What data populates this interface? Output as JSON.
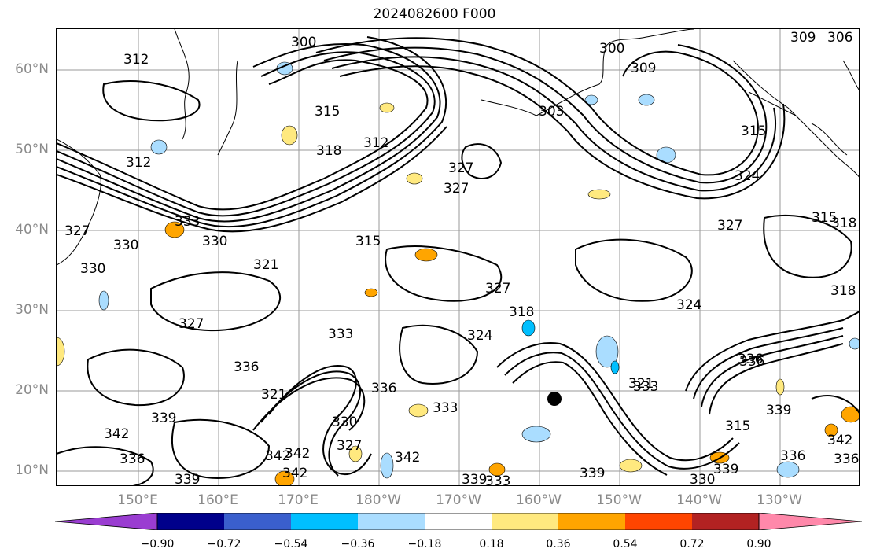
{
  "title": "2024082600 F000",
  "latitude_labels": [
    "60°N",
    "50°N",
    "40°N",
    "30°N",
    "20°N",
    "10°N"
  ],
  "longitude_labels": [
    "150°E",
    "160°E",
    "170°E",
    "180°W",
    "170°W",
    "160°W",
    "150°W",
    "140°W",
    "130°W"
  ],
  "contour_labels": [
    "300",
    "309",
    "306",
    "300",
    "312",
    "315",
    "309",
    "303",
    "318",
    "312",
    "315",
    "312",
    "327",
    "327",
    "324",
    "327",
    "315",
    "318",
    "315",
    "333",
    "330",
    "330",
    "327",
    "321",
    "330",
    "333",
    "318",
    "327",
    "324",
    "336",
    "336",
    "327",
    "321",
    "342",
    "336",
    "339",
    "324",
    "321",
    "333",
    "330",
    "342",
    "333",
    "327",
    "339",
    "342",
    "336",
    "342",
    "342",
    "339",
    "336",
    "339",
    "336",
    "339",
    "342",
    "339",
    "330",
    "333",
    "318",
    "336",
    "315"
  ],
  "colorbar": {
    "colors": [
      "#9a3dd1",
      "#00008b",
      "#3a5fcd",
      "#00bfff",
      "#aaddff",
      "#ffffff",
      "#ffe97f",
      "#ffa500",
      "#ff4500",
      "#b22222",
      "#ff88aa"
    ],
    "tick_labels": [
      "−0.90",
      "−0.72",
      "−0.54",
      "−0.36",
      "−0.18",
      "0.18",
      "0.36",
      "0.54",
      "0.72",
      "0.90"
    ]
  },
  "marker": "storm-center-dot"
}
